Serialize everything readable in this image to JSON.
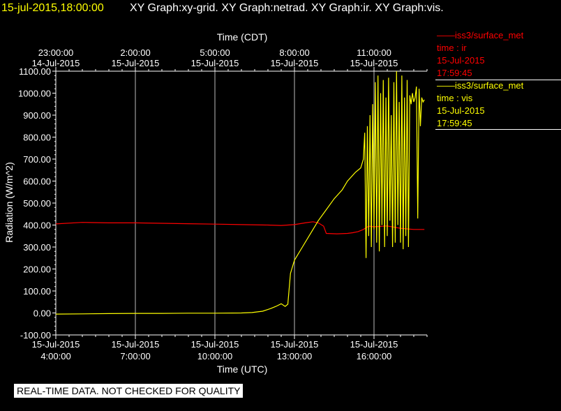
{
  "header": {
    "timestamp": "15-jul-2015,18:00:00",
    "titles": "XY Graph:xy-grid.  XY Graph:netrad.  XY Graph:ir.  XY Graph:vis."
  },
  "legend": [
    {
      "line": "——iss3/surface_met",
      "field": "time : ir",
      "date": "15-Jul-2015",
      "time": "17:59:45",
      "color": "#ff0000"
    },
    {
      "line": "——iss3/surface_met",
      "field": "time : vis",
      "date": "15-Jul-2015",
      "time": "17:59:45",
      "color": "#ffff00"
    }
  ],
  "banner": "REAL-TIME DATA. NOT CHECKED FOR QUALITY",
  "chart_data": {
    "type": "line",
    "ylabel": "Radiation (W/m^2)",
    "xlabel_bottom": "Time (UTC)",
    "xlabel_top": "Time (CDT)",
    "ylim": [
      -100,
      1100
    ],
    "xlim_hours_utc": [
      4.0,
      18.0
    ],
    "grid": true,
    "legend_position": "right",
    "y_ticks": [
      "-100.00",
      "0.00",
      "100.00",
      "200.00",
      "300.00",
      "400.00",
      "500.00",
      "600.00",
      "700.00",
      "800.00",
      "900.00",
      "1000.00",
      "1100.00"
    ],
    "x_ticks_bottom": [
      {
        "h": 4,
        "date": "15-Jul-2015",
        "time": "4:00:00"
      },
      {
        "h": 7,
        "date": "15-Jul-2015",
        "time": "7:00:00"
      },
      {
        "h": 10,
        "date": "15-Jul-2015",
        "time": "10:00:00"
      },
      {
        "h": 13,
        "date": "15-Jul-2015",
        "time": "13:00:00"
      },
      {
        "h": 16,
        "date": "15-Jul-2015",
        "time": "16:00:00"
      }
    ],
    "x_ticks_top": [
      {
        "h": 4,
        "time": "23:00:00",
        "date": "14-Jul-2015"
      },
      {
        "h": 7,
        "time": "2:00:00",
        "date": "15-Jul-2015"
      },
      {
        "h": 10,
        "time": "5:00:00",
        "date": "15-Jul-2015"
      },
      {
        "h": 13,
        "time": "8:00:00",
        "date": "15-Jul-2015"
      },
      {
        "h": 16,
        "time": "11:00:00",
        "date": "15-Jul-2015"
      }
    ],
    "series": [
      {
        "name": "ir",
        "color": "#ff0000",
        "x": [
          4.0,
          5.0,
          6.0,
          7.0,
          8.0,
          9.0,
          10.0,
          11.0,
          12.0,
          12.5,
          13.0,
          13.4,
          13.7,
          13.9,
          14.1,
          14.2,
          14.6,
          15.0,
          15.2,
          15.4,
          15.6,
          15.8,
          16.0,
          16.5,
          17.0,
          17.5,
          17.9
        ],
        "y": [
          405,
          412,
          410,
          410,
          408,
          406,
          404,
          402,
          400,
          398,
          402,
          410,
          415,
          410,
          395,
          362,
          360,
          362,
          365,
          370,
          380,
          395,
          392,
          396,
          385,
          380,
          380
        ]
      },
      {
        "name": "vis",
        "color": "#ffff00",
        "x": [
          4.0,
          5.0,
          6.0,
          7.0,
          8.0,
          9.0,
          10.0,
          11.0,
          11.4,
          11.8,
          12.1,
          12.3,
          12.5,
          12.65,
          12.75,
          12.85,
          12.9,
          13.0,
          13.3,
          13.6,
          13.9,
          14.2,
          14.5,
          14.8,
          15.0,
          15.3,
          15.5,
          15.6,
          15.65,
          15.7,
          15.75,
          15.8,
          15.85,
          15.9,
          15.95,
          16.0,
          16.05,
          16.1,
          16.15,
          16.2,
          16.25,
          16.3,
          16.35,
          16.4,
          16.45,
          16.5,
          16.55,
          16.6,
          16.65,
          16.7,
          16.75,
          16.8,
          16.85,
          16.9,
          16.95,
          17.0,
          17.05,
          17.1,
          17.15,
          17.2,
          17.25,
          17.3,
          17.35,
          17.4,
          17.45,
          17.5,
          17.55,
          17.6,
          17.65,
          17.7,
          17.75,
          17.8,
          17.85,
          17.9
        ],
        "y": [
          -5,
          -4,
          -3,
          -2,
          -2,
          -1,
          -1,
          0,
          2,
          8,
          20,
          30,
          42,
          30,
          40,
          180,
          200,
          240,
          300,
          360,
          420,
          470,
          520,
          560,
          600,
          640,
          660,
          700,
          820,
          250,
          850,
          350,
          900,
          300,
          950,
          380,
          1050,
          320,
          1080,
          280,
          1000,
          400,
          1060,
          300,
          980,
          350,
          1070,
          420,
          900,
          300,
          1050,
          320,
          1100,
          400,
          960,
          320,
          1080,
          290,
          980,
          350,
          1060,
          300,
          990,
          950,
          1000,
          960,
          980,
          1030,
          430,
          1020,
          850,
          980,
          960,
          970
        ]
      }
    ]
  }
}
